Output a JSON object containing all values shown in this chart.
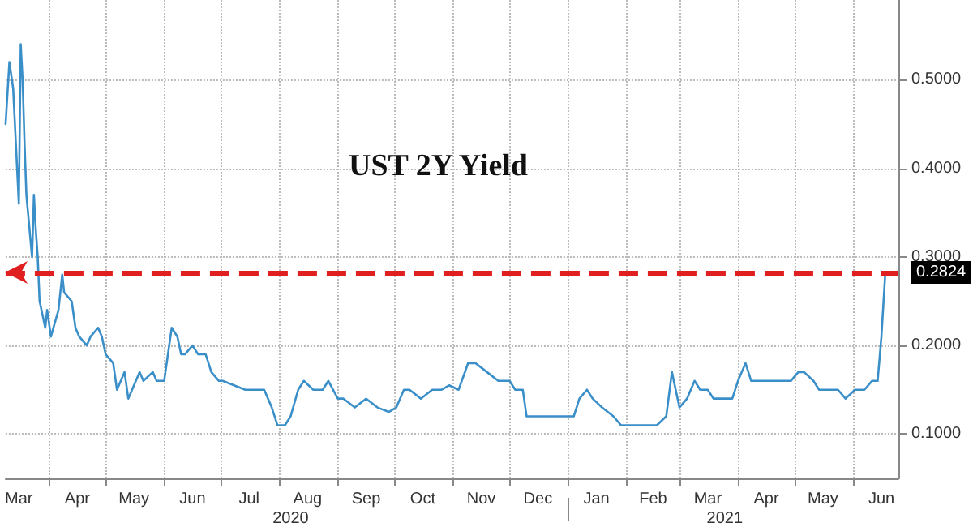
{
  "chart_data": {
    "type": "line",
    "title": "UST 2Y Yield",
    "x": [
      "2020-03-09",
      "2020-03-11",
      "2020-03-13",
      "2020-03-16",
      "2020-03-17",
      "2020-03-18",
      "2020-03-19",
      "2020-03-20",
      "2020-03-23",
      "2020-03-24",
      "2020-03-25",
      "2020-03-26",
      "2020-03-27",
      "2020-03-30",
      "2020-03-31",
      "2020-04-02",
      "2020-04-06",
      "2020-04-08",
      "2020-04-09",
      "2020-04-13",
      "2020-04-15",
      "2020-04-17",
      "2020-04-21",
      "2020-04-23",
      "2020-04-27",
      "2020-04-29",
      "2020-05-01",
      "2020-05-05",
      "2020-05-07",
      "2020-05-11",
      "2020-05-13",
      "2020-05-15",
      "2020-05-19",
      "2020-05-21",
      "2020-05-26",
      "2020-05-28",
      "2020-06-01",
      "2020-06-03",
      "2020-06-05",
      "2020-06-08",
      "2020-06-10",
      "2020-06-12",
      "2020-06-16",
      "2020-06-19",
      "2020-06-23",
      "2020-06-26",
      "2020-06-30",
      "2020-07-02",
      "2020-07-08",
      "2020-07-14",
      "2020-07-20",
      "2020-07-24",
      "2020-07-28",
      "2020-07-31",
      "2020-08-04",
      "2020-08-07",
      "2020-08-11",
      "2020-08-14",
      "2020-08-19",
      "2020-08-24",
      "2020-08-27",
      "2020-09-01",
      "2020-09-04",
      "2020-09-10",
      "2020-09-16",
      "2020-09-22",
      "2020-09-28",
      "2020-10-02",
      "2020-10-06",
      "2020-10-09",
      "2020-10-15",
      "2020-10-21",
      "2020-10-26",
      "2020-10-30",
      "2020-11-04",
      "2020-11-09",
      "2020-11-13",
      "2020-11-19",
      "2020-11-25",
      "2020-12-01",
      "2020-12-04",
      "2020-12-08",
      "2020-12-10",
      "2020-12-15",
      "2020-12-21",
      "2020-12-28",
      "2021-01-04",
      "2021-01-07",
      "2021-01-11",
      "2021-01-14",
      "2021-01-19",
      "2021-01-25",
      "2021-01-29",
      "2021-02-03",
      "2021-02-08",
      "2021-02-12",
      "2021-02-17",
      "2021-02-22",
      "2021-02-25",
      "2021-03-01",
      "2021-03-05",
      "2021-03-09",
      "2021-03-12",
      "2021-03-16",
      "2021-03-19",
      "2021-03-24",
      "2021-03-29",
      "2021-04-01",
      "2021-04-05",
      "2021-04-08",
      "2021-04-13",
      "2021-04-16",
      "2021-04-21",
      "2021-04-26",
      "2021-04-29",
      "2021-05-03",
      "2021-05-06",
      "2021-05-11",
      "2021-05-14",
      "2021-05-18",
      "2021-05-24",
      "2021-05-28",
      "2021-06-02",
      "2021-06-07",
      "2021-06-11",
      "2021-06-14",
      "2021-06-16",
      "2021-06-18"
    ],
    "series": [
      {
        "color": "#3b8fc9",
        "values": [
          0.45,
          0.52,
          0.49,
          0.36,
          0.54,
          0.5,
          0.43,
          0.37,
          0.3,
          0.37,
          0.33,
          0.3,
          0.25,
          0.22,
          0.24,
          0.21,
          0.24,
          0.28,
          0.26,
          0.25,
          0.22,
          0.21,
          0.2,
          0.21,
          0.22,
          0.21,
          0.19,
          0.18,
          0.15,
          0.17,
          0.14,
          0.15,
          0.17,
          0.16,
          0.17,
          0.16,
          0.16,
          0.19,
          0.22,
          0.21,
          0.19,
          0.19,
          0.2,
          0.19,
          0.19,
          0.17,
          0.16,
          0.16,
          0.155,
          0.15,
          0.15,
          0.15,
          0.13,
          0.11,
          0.11,
          0.12,
          0.15,
          0.16,
          0.15,
          0.15,
          0.16,
          0.14,
          0.14,
          0.13,
          0.14,
          0.13,
          0.125,
          0.13,
          0.15,
          0.15,
          0.14,
          0.15,
          0.15,
          0.155,
          0.15,
          0.18,
          0.18,
          0.17,
          0.16,
          0.16,
          0.15,
          0.15,
          0.12,
          0.12,
          0.12,
          0.12,
          0.12,
          0.14,
          0.15,
          0.14,
          0.13,
          0.12,
          0.11,
          0.11,
          0.11,
          0.11,
          0.11,
          0.12,
          0.17,
          0.13,
          0.14,
          0.16,
          0.15,
          0.15,
          0.14,
          0.14,
          0.14,
          0.16,
          0.18,
          0.16,
          0.16,
          0.16,
          0.16,
          0.16,
          0.16,
          0.17,
          0.17,
          0.16,
          0.15,
          0.15,
          0.15,
          0.14,
          0.15,
          0.15,
          0.16,
          0.16,
          0.21,
          0.28
        ]
      }
    ],
    "xlim": [
      "2020-03-09",
      "2021-06-25"
    ],
    "xticks": [
      {
        "value": "2020-03-16",
        "label": "Mar"
      },
      {
        "value": "2020-04-01",
        "label": null
      },
      {
        "value": "2020-04-16",
        "label": "Apr"
      },
      {
        "value": "2020-05-01",
        "label": null
      },
      {
        "value": "2020-05-16",
        "label": "May"
      },
      {
        "value": "2020-06-01",
        "label": null
      },
      {
        "value": "2020-06-16",
        "label": "Jun"
      },
      {
        "value": "2020-07-01",
        "label": null
      },
      {
        "value": "2020-07-16",
        "label": "Jul"
      },
      {
        "value": "2020-08-01",
        "label": null
      },
      {
        "value": "2020-08-16",
        "label": "Aug"
      },
      {
        "value": "2020-09-01",
        "label": null
      },
      {
        "value": "2020-09-16",
        "label": "Sep"
      },
      {
        "value": "2020-10-01",
        "label": null
      },
      {
        "value": "2020-10-16",
        "label": "Oct"
      },
      {
        "value": "2020-11-01",
        "label": null
      },
      {
        "value": "2020-11-16",
        "label": "Nov"
      },
      {
        "value": "2020-12-01",
        "label": null
      },
      {
        "value": "2020-12-16",
        "label": "Dec"
      },
      {
        "value": "2021-01-01",
        "label": null
      },
      {
        "value": "2021-01-16",
        "label": "Jan"
      },
      {
        "value": "2021-02-01",
        "label": null
      },
      {
        "value": "2021-02-15",
        "label": "Feb"
      },
      {
        "value": "2021-03-01",
        "label": null
      },
      {
        "value": "2021-03-16",
        "label": "Mar"
      },
      {
        "value": "2021-04-01",
        "label": null
      },
      {
        "value": "2021-04-16",
        "label": "Apr"
      },
      {
        "value": "2021-05-01",
        "label": null
      },
      {
        "value": "2021-05-16",
        "label": "May"
      },
      {
        "value": "2021-06-01",
        "label": null
      },
      {
        "value": "2021-06-16",
        "label": "Jun"
      }
    ],
    "x2lim": [
      "2020-03-09",
      "2021-06-25"
    ],
    "x2ticks": [
      {
        "value": "2020-08-07",
        "label": "2020"
      },
      {
        "value": "2021-01-01",
        "label": null
      },
      {
        "value": "2021-03-25",
        "label": "2021"
      }
    ],
    "ylim": [
      0.05,
      0.59
    ],
    "yticks": [
      {
        "value": 0.1,
        "label": "0.1000"
      },
      {
        "value": 0.2,
        "label": "0.2000"
      },
      {
        "value": 0.3,
        "label": "0.3000"
      },
      {
        "value": 0.4,
        "label": "0.4000"
      },
      {
        "value": 0.5,
        "label": "0.5000"
      }
    ],
    "ref_lines": [
      {
        "axis": "y",
        "value": 0.2824,
        "label": "0.2824",
        "color": "#e02020",
        "line_style": "dashed"
      }
    ],
    "grid": true,
    "marker": "none",
    "line_style": "solid"
  }
}
